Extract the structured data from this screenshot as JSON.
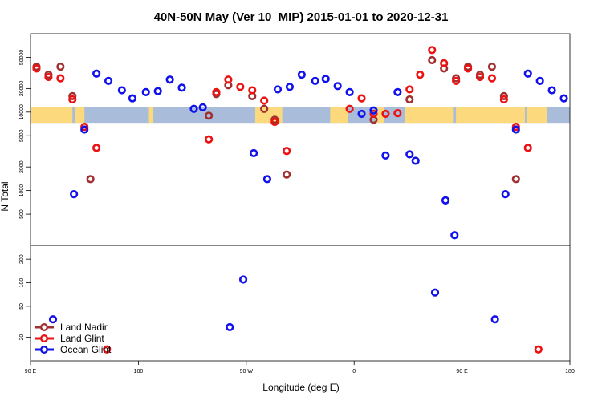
{
  "chart_data": {
    "type": "scatter",
    "title": "40N-50N May (Ver 10_MIP)   2015-01-01 to 2020-12-31",
    "xlabel": "Longitude (deg E)",
    "ylabel": "N Total",
    "y_scale": "log",
    "xlim": [
      0,
      360
    ],
    "x_ticks": [
      {
        "value": 0,
        "label": "90 E"
      },
      {
        "value": 72,
        "label": "180"
      },
      {
        "value": 144,
        "label": "90 W"
      },
      {
        "value": 216,
        "label": "0"
      },
      {
        "value": 288,
        "label": "90 E"
      },
      {
        "value": 360,
        "label": "180"
      }
    ],
    "upper_panel": {
      "ylim": [
        200,
        100000
      ],
      "y_ticks": [
        {
          "value": 500,
          "label": "500"
        },
        {
          "value": 1000,
          "label": "1000"
        },
        {
          "value": 2000,
          "label": "2000"
        },
        {
          "value": 5000,
          "label": "5000"
        },
        {
          "value": 10000,
          "label": "10000"
        },
        {
          "value": 20000,
          "label": "20000"
        },
        {
          "value": 50000,
          "label": "50000"
        }
      ]
    },
    "lower_panel": {
      "ylim": [
        10,
        300
      ],
      "y_ticks": [
        {
          "value": 20,
          "label": "20"
        },
        {
          "value": 50,
          "label": "50"
        },
        {
          "value": 100,
          "label": "100"
        },
        {
          "value": 200,
          "label": "200"
        }
      ]
    },
    "map_strip_colors": {
      "ocean": "#a9bcd9",
      "land": "#fcd97c"
    },
    "legend_position": "bottom-left",
    "series": [
      {
        "name": "Land Nadir",
        "color": "#a03030",
        "points": [
          {
            "x": 4,
            "y": 38000
          },
          {
            "x": 12,
            "y": 30000
          },
          {
            "x": 20,
            "y": 38000
          },
          {
            "x": 28,
            "y": 16000
          },
          {
            "x": 40,
            "y": 1400
          },
          {
            "x": 119,
            "y": 9000
          },
          {
            "x": 124,
            "y": 17000
          },
          {
            "x": 132,
            "y": 22000
          },
          {
            "x": 148,
            "y": 16000
          },
          {
            "x": 156,
            "y": 11000
          },
          {
            "x": 163,
            "y": 8000
          },
          {
            "x": 171,
            "y": 1600
          },
          {
            "x": 229,
            "y": 8000
          },
          {
            "x": 253,
            "y": 14500
          },
          {
            "x": 268,
            "y": 46000
          },
          {
            "x": 276,
            "y": 36000
          },
          {
            "x": 284,
            "y": 27000
          },
          {
            "x": 292,
            "y": 38000
          },
          {
            "x": 300,
            "y": 30000
          },
          {
            "x": 308,
            "y": 38000
          },
          {
            "x": 316,
            "y": 16000
          },
          {
            "x": 324,
            "y": 1400
          }
        ]
      },
      {
        "name": "Land Glint",
        "color": "#ee1111",
        "points": [
          {
            "x": 4,
            "y": 36000
          },
          {
            "x": 12,
            "y": 28000
          },
          {
            "x": 20,
            "y": 27000
          },
          {
            "x": 28,
            "y": 14500
          },
          {
            "x": 36,
            "y": 6500
          },
          {
            "x": 44,
            "y": 3500
          },
          {
            "x": 51,
            "y": 14
          },
          {
            "x": 119,
            "y": 4500
          },
          {
            "x": 124,
            "y": 18000
          },
          {
            "x": 132,
            "y": 26000
          },
          {
            "x": 140,
            "y": 21000
          },
          {
            "x": 148,
            "y": 19000
          },
          {
            "x": 156,
            "y": 14000
          },
          {
            "x": 163,
            "y": 7500
          },
          {
            "x": 171,
            "y": 3200
          },
          {
            "x": 213,
            "y": 11000
          },
          {
            "x": 221,
            "y": 15000
          },
          {
            "x": 229,
            "y": 9500
          },
          {
            "x": 237,
            "y": 9500
          },
          {
            "x": 245,
            "y": 9700
          },
          {
            "x": 253,
            "y": 19500
          },
          {
            "x": 260,
            "y": 30000
          },
          {
            "x": 268,
            "y": 62000
          },
          {
            "x": 276,
            "y": 42000
          },
          {
            "x": 284,
            "y": 25000
          },
          {
            "x": 292,
            "y": 36000
          },
          {
            "x": 300,
            "y": 28000
          },
          {
            "x": 308,
            "y": 27000
          },
          {
            "x": 316,
            "y": 14500
          },
          {
            "x": 324,
            "y": 6500
          },
          {
            "x": 332,
            "y": 3500
          },
          {
            "x": 339,
            "y": 14
          }
        ]
      },
      {
        "name": "Ocean Glint",
        "color": "#1111ee",
        "points": [
          {
            "x": 15,
            "y": 34
          },
          {
            "x": 29,
            "y": 900
          },
          {
            "x": 36,
            "y": 6000
          },
          {
            "x": 44,
            "y": 31000
          },
          {
            "x": 52,
            "y": 25000
          },
          {
            "x": 61,
            "y": 19000
          },
          {
            "x": 68,
            "y": 15000
          },
          {
            "x": 77,
            "y": 18000
          },
          {
            "x": 85,
            "y": 18500
          },
          {
            "x": 93,
            "y": 26000
          },
          {
            "x": 101,
            "y": 20500
          },
          {
            "x": 109,
            "y": 11000
          },
          {
            "x": 115,
            "y": 11500
          },
          {
            "x": 133,
            "y": 27
          },
          {
            "x": 142,
            "y": 110
          },
          {
            "x": 149,
            "y": 3000
          },
          {
            "x": 158,
            "y": 1400
          },
          {
            "x": 165,
            "y": 19500
          },
          {
            "x": 173,
            "y": 21000
          },
          {
            "x": 181,
            "y": 30000
          },
          {
            "x": 190,
            "y": 25000
          },
          {
            "x": 197,
            "y": 26500
          },
          {
            "x": 205,
            "y": 21500
          },
          {
            "x": 213,
            "y": 18000
          },
          {
            "x": 221,
            "y": 9500
          },
          {
            "x": 229,
            "y": 10500
          },
          {
            "x": 237,
            "y": 2800
          },
          {
            "x": 245,
            "y": 18000
          },
          {
            "x": 253,
            "y": 2900
          },
          {
            "x": 257,
            "y": 2400
          },
          {
            "x": 270,
            "y": 75
          },
          {
            "x": 277,
            "y": 750
          },
          {
            "x": 283,
            "y": 270
          },
          {
            "x": 310,
            "y": 34
          },
          {
            "x": 317,
            "y": 900
          },
          {
            "x": 324,
            "y": 6000
          },
          {
            "x": 332,
            "y": 31000
          },
          {
            "x": 340,
            "y": 25000
          },
          {
            "x": 348,
            "y": 19000
          },
          {
            "x": 356,
            "y": 15000
          }
        ]
      }
    ]
  }
}
